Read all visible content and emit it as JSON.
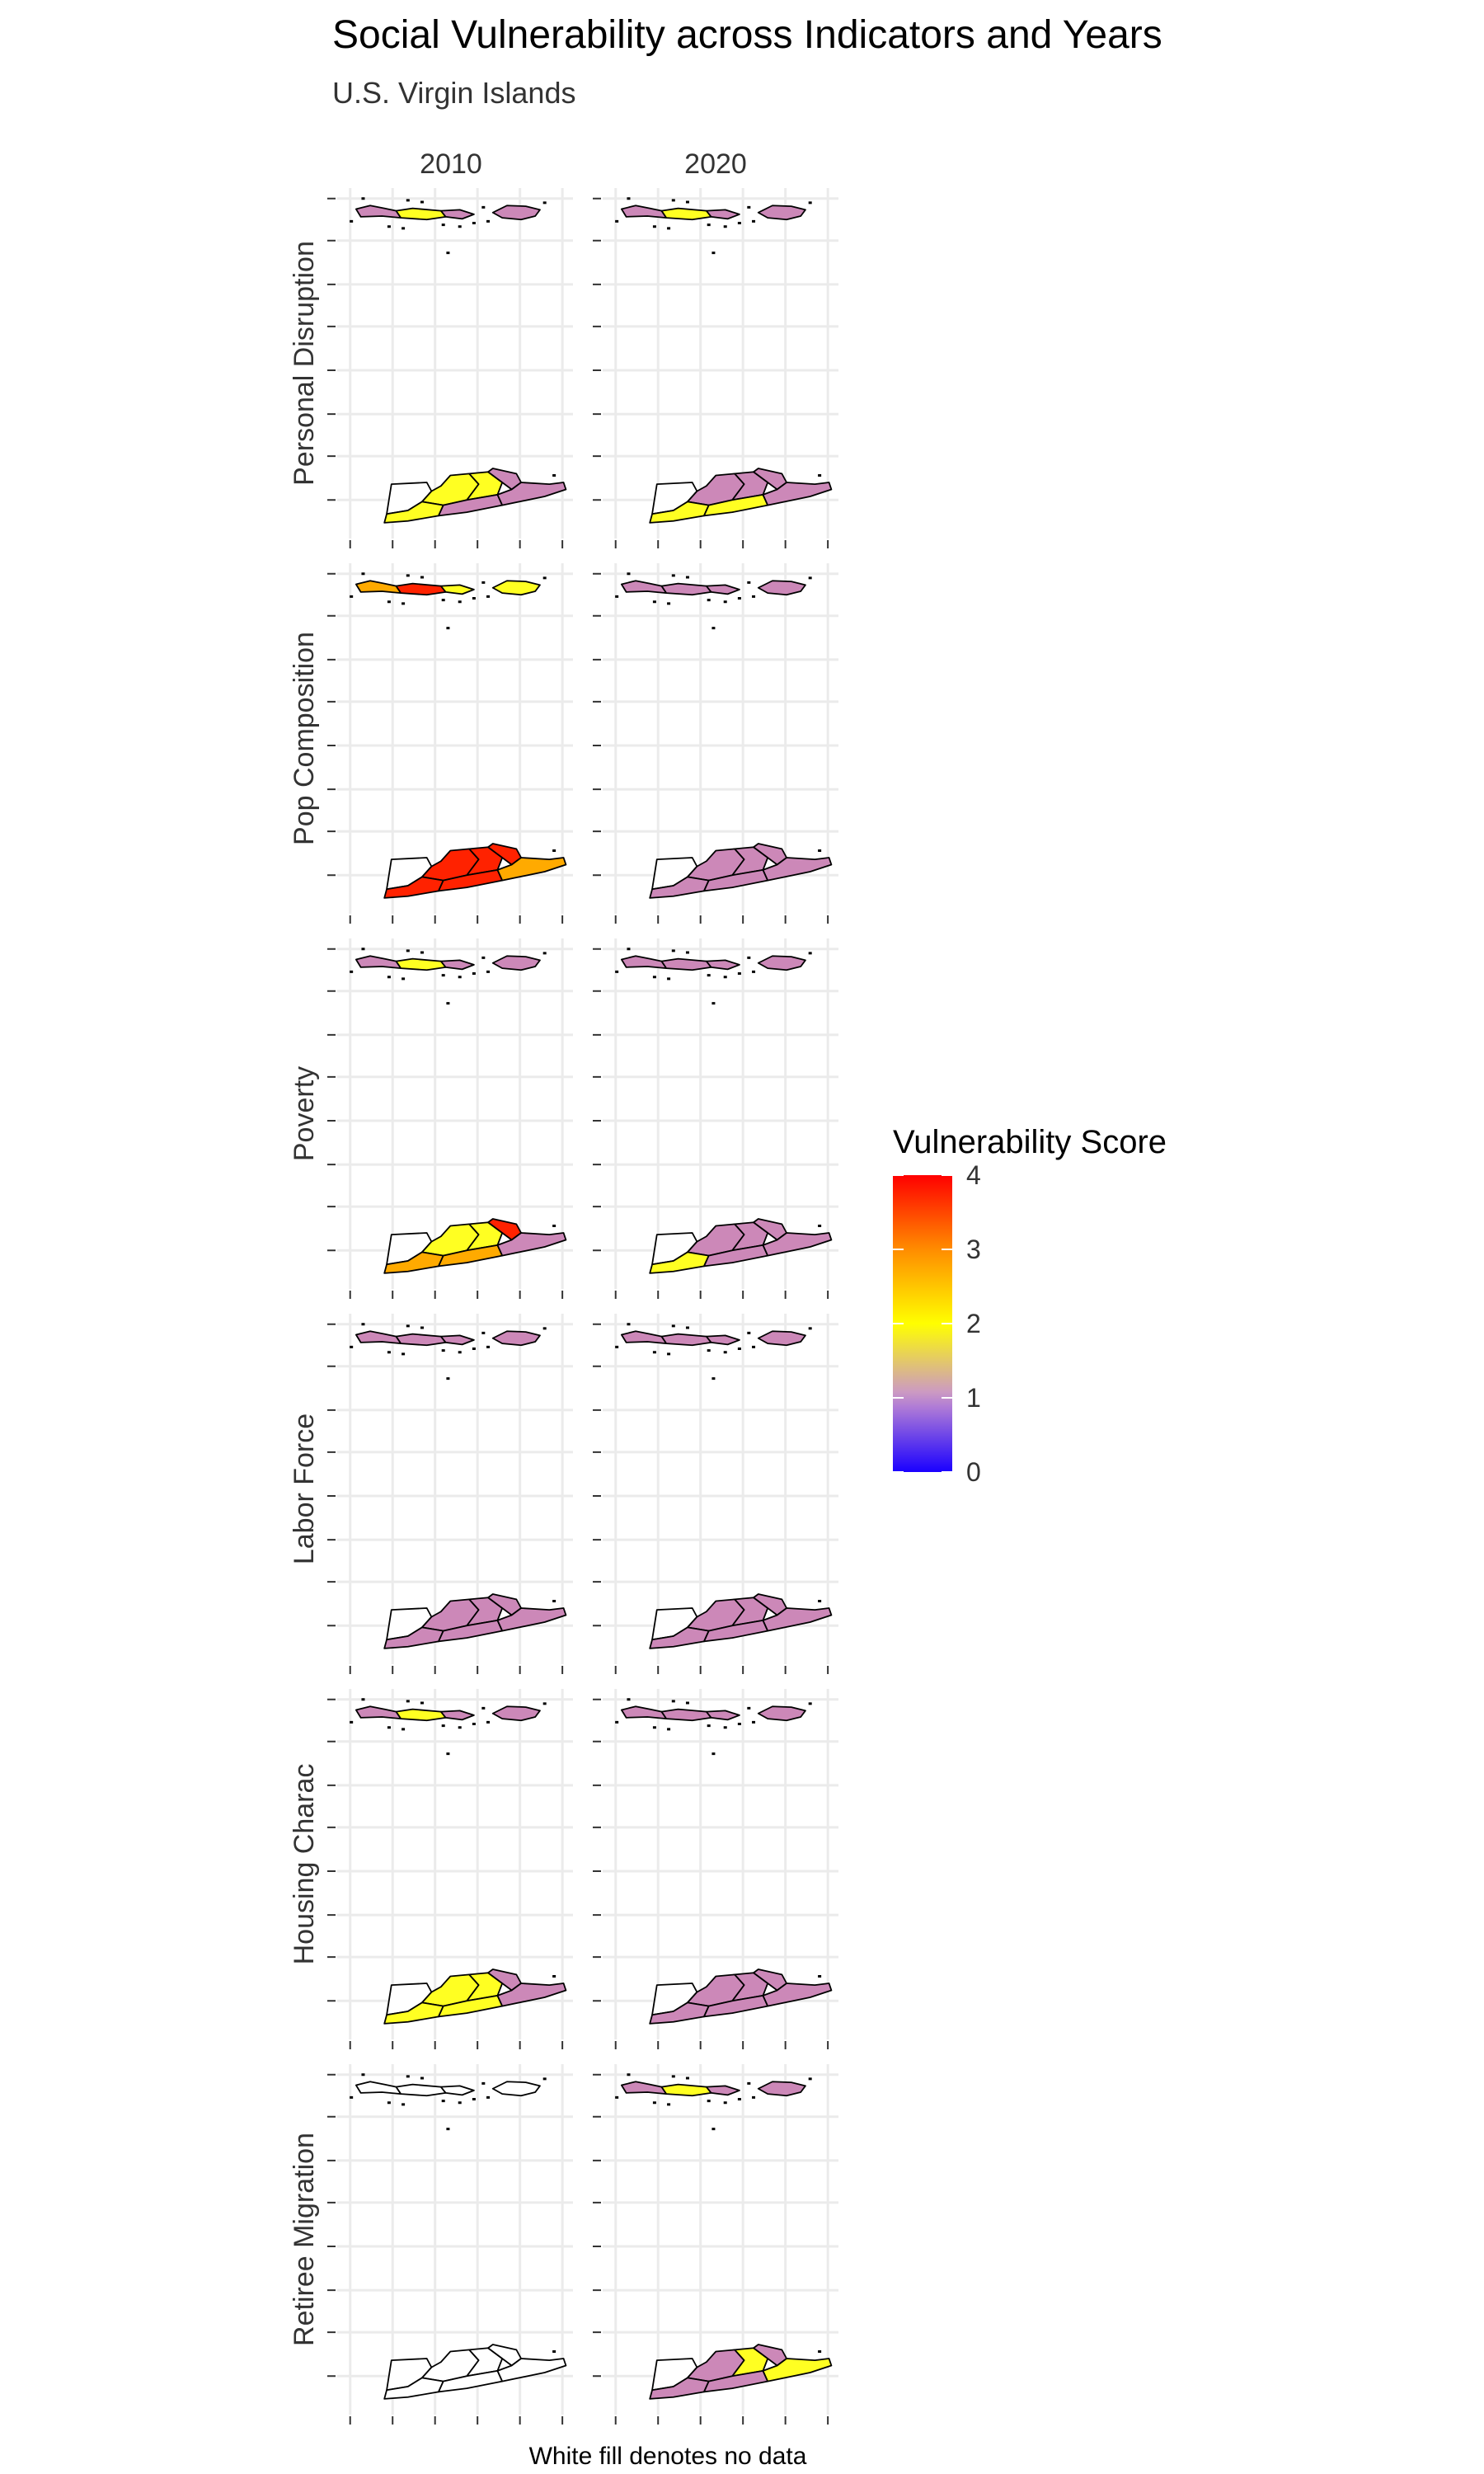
{
  "title": "Social Vulnerability across Indicators and Years",
  "subtitle": "U.S. Virgin Islands",
  "caption": "White fill denotes no data",
  "columns": [
    "2010",
    "2020"
  ],
  "rows": [
    "Personal Disruption",
    "Pop Composition",
    "Poverty",
    "Labor Force",
    "Housing Charac",
    "Retiree Migration"
  ],
  "legend": {
    "title": "Vulnerability Score",
    "ticks": [
      "4",
      "3",
      "2",
      "1",
      "0"
    ],
    "gradient": [
      "#1a00ff",
      "#b07cd6",
      "#cc9ac2",
      "#ffff00",
      "#ff8c00",
      "#ff0000"
    ]
  },
  "colors": {
    "no_data": "#ffffff",
    "level1": "#cc88b8",
    "level2": "#ffff22",
    "level3": "#ffaa00",
    "level4": "#ff2200"
  },
  "chart_data": {
    "type": "choropleth-map",
    "note": "Approximate fill level per region (0 = no data / white, 1 = pink, 2 = yellow, 3 = orange, 4 = red). Region order: St. Croix [west, northwest, north-central, northeast, south-west, south-central, east]; St. Thomas/St. John [west, central, east, St. John].",
    "panels": [
      {
        "row": "Personal Disruption",
        "year": "2010",
        "stcroix": [
          0,
          2,
          2,
          1,
          2,
          1,
          1
        ],
        "stthomas": [
          1,
          2,
          1,
          1
        ]
      },
      {
        "row": "Personal Disruption",
        "year": "2020",
        "stcroix": [
          0,
          1,
          1,
          1,
          2,
          2,
          1
        ],
        "stthomas": [
          1,
          2,
          1,
          1
        ]
      },
      {
        "row": "Pop Composition",
        "year": "2010",
        "stcroix": [
          0,
          4,
          4,
          4,
          4,
          4,
          3
        ],
        "stthomas": [
          3,
          4,
          2,
          2
        ]
      },
      {
        "row": "Pop Composition",
        "year": "2020",
        "stcroix": [
          0,
          1,
          1,
          1,
          1,
          1,
          1
        ],
        "stthomas": [
          1,
          1,
          1,
          1
        ]
      },
      {
        "row": "Poverty",
        "year": "2010",
        "stcroix": [
          0,
          2,
          2,
          4,
          3,
          3,
          1
        ],
        "stthomas": [
          1,
          2,
          1,
          1
        ]
      },
      {
        "row": "Poverty",
        "year": "2020",
        "stcroix": [
          0,
          1,
          1,
          1,
          2,
          1,
          1
        ],
        "stthomas": [
          1,
          1,
          1,
          1
        ]
      },
      {
        "row": "Labor Force",
        "year": "2010",
        "stcroix": [
          0,
          1,
          1,
          1,
          1,
          1,
          1
        ],
        "stthomas": [
          1,
          1,
          1,
          1
        ]
      },
      {
        "row": "Labor Force",
        "year": "2020",
        "stcroix": [
          0,
          1,
          1,
          1,
          1,
          1,
          1
        ],
        "stthomas": [
          1,
          1,
          1,
          1
        ]
      },
      {
        "row": "Housing Charac",
        "year": "2010",
        "stcroix": [
          0,
          2,
          2,
          1,
          2,
          2,
          1
        ],
        "stthomas": [
          1,
          2,
          1,
          1
        ]
      },
      {
        "row": "Housing Charac",
        "year": "2020",
        "stcroix": [
          0,
          1,
          1,
          1,
          1,
          1,
          1
        ],
        "stthomas": [
          1,
          1,
          1,
          1
        ]
      },
      {
        "row": "Retiree Migration",
        "year": "2010",
        "stcroix": [
          0,
          0,
          0,
          0,
          0,
          0,
          0
        ],
        "stthomas": [
          0,
          0,
          0,
          0
        ]
      },
      {
        "row": "Retiree Migration",
        "year": "2020",
        "stcroix": [
          0,
          1,
          2,
          1,
          1,
          1,
          2
        ],
        "stthomas": [
          1,
          2,
          1,
          1
        ]
      }
    ]
  }
}
